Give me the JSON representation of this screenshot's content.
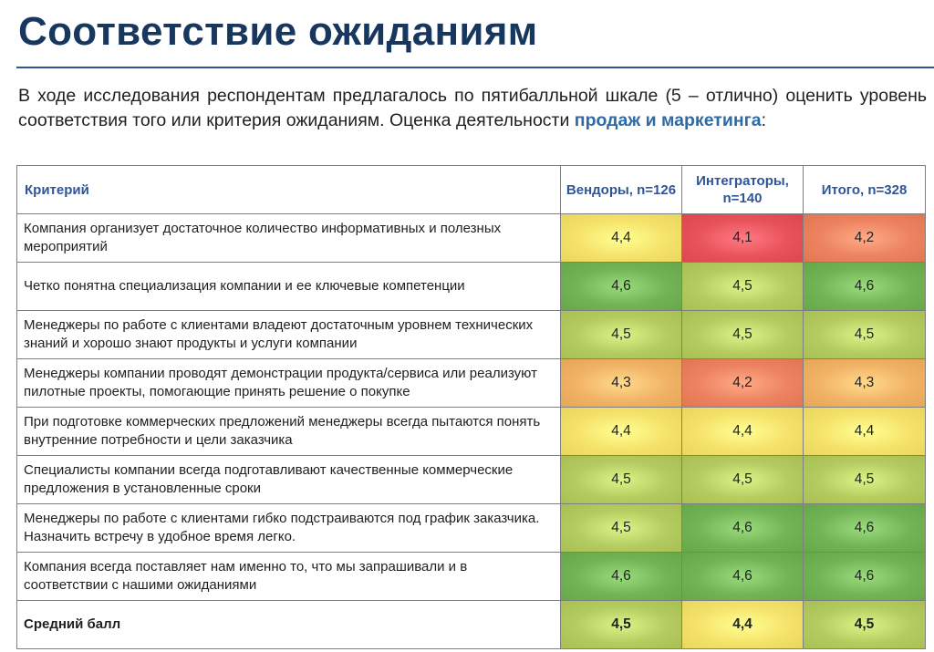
{
  "title": "Соответствие ожиданиям",
  "intro": {
    "text": "В ходе исследования респондентам предлагалось по пятибалльной шкале (5 – отлично) оценить уровень соответствия того или критерия ожиданиям. Оценка деятельности ",
    "highlight": "продаж и маркетинга",
    "suffix": ":"
  },
  "table": {
    "headers": {
      "criterion": "Критерий",
      "vendors": "Вендоры, n=126",
      "integrators": "Интеграторы, n=140",
      "total": "Итого, n=328"
    },
    "rows": [
      {
        "criterion": "Компания организует достаточное количество информативных и полезных мероприятий",
        "vendors": "4,4",
        "integrators": "4,1",
        "total": "4,2"
      },
      {
        "criterion": "Четко понятна специализация компании и ее ключевые компетенции",
        "vendors": "4,6",
        "integrators": "4,5",
        "total": "4,6"
      },
      {
        "criterion": "Менеджеры по работе с клиентами владеют достаточным уровнем технических знаний и хорошо знают продукты и услуги компании",
        "vendors": "4,5",
        "integrators": "4,5",
        "total": "4,5"
      },
      {
        "criterion": "Менеджеры компании проводят демонстрации продукта/сервиса или реализуют пилотные проекты, помогающие принять решение о покупке",
        "vendors": "4,3",
        "integrators": "4,2",
        "total": "4,3"
      },
      {
        "criterion": "При подготовке коммерческих предложений менеджеры всегда пытаются понять внутренние потребности и цели заказчика",
        "vendors": "4,4",
        "integrators": "4,4",
        "total": "4,4"
      },
      {
        "criterion": "Специалисты компании всегда подготавливают качественные коммерческие предложения в установленные сроки",
        "vendors": "4,5",
        "integrators": "4,5",
        "total": "4,5"
      },
      {
        "criterion": "Менеджеры по работе с клиентами гибко подстраиваются под график заказчика. Назначить встречу в удобное время легко.",
        "vendors": "4,5",
        "integrators": "4,6",
        "total": "4,6"
      },
      {
        "criterion": "Компания всегда поставляет нам именно то, что мы запрашивали и в соответствии с нашими ожиданиями",
        "vendors": "4,6",
        "integrators": "4,6",
        "total": "4,6"
      }
    ],
    "average": {
      "criterion": "Средний балл",
      "vendors": "4,5",
      "integrators": "4,4",
      "total": "4,5"
    }
  },
  "colors": {
    "title": "#17375e",
    "header_text": "#2f5597",
    "highlight": "#2e6aa6",
    "heat_low": "#e8525a",
    "heat_mid": "#f5e26a",
    "heat_high": "#72b455"
  }
}
